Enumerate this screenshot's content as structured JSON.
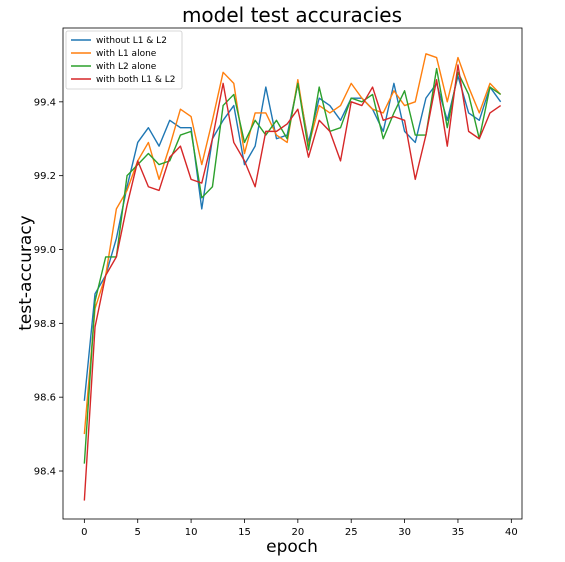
{
  "chart_data": {
    "type": "line",
    "title": "model test accuracies",
    "xlabel": "epoch",
    "ylabel": "test-accuracy",
    "xlim": [
      -2,
      41
    ],
    "ylim": [
      98.27,
      99.6
    ],
    "xticks": [
      0,
      5,
      10,
      15,
      20,
      25,
      30,
      35,
      40
    ],
    "yticks": [
      98.4,
      98.6,
      98.8,
      99.0,
      99.2,
      99.4
    ],
    "grid": false,
    "legend_position": "top-left",
    "x": [
      0,
      1,
      2,
      3,
      4,
      5,
      6,
      7,
      8,
      9,
      10,
      11,
      12,
      13,
      14,
      15,
      16,
      17,
      18,
      19,
      20,
      21,
      22,
      23,
      24,
      25,
      26,
      27,
      28,
      29,
      30,
      31,
      32,
      33,
      34,
      35,
      36,
      37,
      38,
      39
    ],
    "series": [
      {
        "name": "without L1 & L2",
        "color": "#1f77b4",
        "values": [
          98.59,
          98.88,
          98.93,
          99.03,
          99.17,
          99.29,
          99.33,
          99.28,
          99.35,
          99.33,
          99.33,
          99.11,
          99.3,
          99.35,
          99.39,
          99.23,
          99.28,
          99.44,
          99.3,
          99.31,
          99.45,
          99.29,
          99.41,
          99.39,
          99.35,
          99.41,
          99.41,
          99.38,
          99.32,
          99.45,
          99.32,
          99.29,
          99.41,
          99.45,
          99.35,
          99.47,
          99.37,
          99.35,
          99.44,
          99.4
        ]
      },
      {
        "name": "with L1 alone",
        "color": "#ff7f0e",
        "values": [
          98.5,
          98.84,
          98.93,
          99.11,
          99.16,
          99.24,
          99.29,
          99.19,
          99.28,
          99.38,
          99.36,
          99.23,
          99.35,
          99.48,
          99.45,
          99.26,
          99.37,
          99.37,
          99.31,
          99.29,
          99.46,
          99.28,
          99.39,
          99.37,
          99.39,
          99.45,
          99.41,
          99.38,
          99.37,
          99.43,
          99.39,
          99.4,
          99.53,
          99.52,
          99.4,
          99.52,
          99.44,
          99.37,
          99.45,
          99.42
        ]
      },
      {
        "name": "with L2 alone",
        "color": "#2ca02c",
        "values": [
          98.42,
          98.86,
          98.98,
          98.98,
          99.2,
          99.23,
          99.26,
          99.23,
          99.24,
          99.31,
          99.32,
          99.14,
          99.17,
          99.39,
          99.42,
          99.29,
          99.35,
          99.31,
          99.35,
          99.3,
          99.45,
          99.27,
          99.44,
          99.32,
          99.33,
          99.41,
          99.4,
          99.42,
          99.3,
          99.37,
          99.43,
          99.31,
          99.31,
          99.49,
          99.33,
          99.48,
          99.42,
          99.3,
          99.44,
          99.42
        ]
      },
      {
        "name": "with both L1 & L2",
        "color": "#d62728",
        "values": [
          98.32,
          98.79,
          98.93,
          98.98,
          99.12,
          99.24,
          99.17,
          99.16,
          99.25,
          99.28,
          99.19,
          99.18,
          99.3,
          99.45,
          99.29,
          99.24,
          99.17,
          99.32,
          99.32,
          99.34,
          99.38,
          99.25,
          99.35,
          99.32,
          99.24,
          99.4,
          99.39,
          99.44,
          99.35,
          99.36,
          99.35,
          99.19,
          99.31,
          99.46,
          99.28,
          99.5,
          99.32,
          99.3,
          99.37,
          99.39
        ]
      }
    ]
  }
}
